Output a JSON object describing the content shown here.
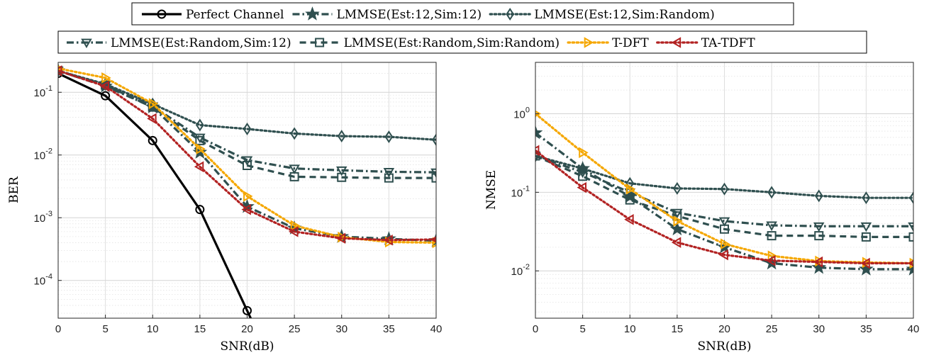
{
  "legend": {
    "series_names": [
      "Perfect Channel",
      "LMMSE(Est:12,Sim:12)",
      "LMMSE(Est:12,Sim:Random)",
      "LMMSE(Est:Random,Sim:12)",
      "LMMSE(Est:Random,Sim:Random)",
      "T-DFT",
      "TA-TDFT"
    ]
  },
  "styles": {
    "Perfect Channel": {
      "color": "#000000",
      "dash": "solid",
      "marker": "circle"
    },
    "LMMSE(Est:12,Sim:12)": {
      "color": "#2f4f4f",
      "dash": "dashdot",
      "marker": "star"
    },
    "LMMSE(Est:12,Sim:Random)": {
      "color": "#2f4f4f",
      "dash": "dotted",
      "marker": "diamond"
    },
    "LMMSE(Est:Random,Sim:12)": {
      "color": "#2f4f4f",
      "dash": "dashdot",
      "marker": "triangle-down"
    },
    "LMMSE(Est:Random,Sim:Random)": {
      "color": "#2f4f4f",
      "dash": "dashed",
      "marker": "square"
    },
    "T-DFT": {
      "color": "#f5a700",
      "dash": "dotted",
      "marker": "triangle-right"
    },
    "TA-TDFT": {
      "color": "#b22222",
      "dash": "dotted",
      "marker": "triangle-left"
    }
  },
  "chart_data": [
    {
      "type": "line",
      "title": "",
      "xlabel": "SNR(dB)",
      "ylabel": "BER",
      "yscale": "log",
      "xlim": [
        0,
        40
      ],
      "ylim": [
        2.5e-05,
        0.3
      ],
      "x_ticks": [
        "0",
        "5",
        "10",
        "15",
        "20",
        "25",
        "30",
        "35",
        "40"
      ],
      "y_ticks": [
        {
          "value": 0.1,
          "base": "10",
          "exp": "-1"
        },
        {
          "value": 0.01,
          "base": "10",
          "exp": "-2"
        },
        {
          "value": 0.001,
          "base": "10",
          "exp": "-3"
        },
        {
          "value": 0.0001,
          "base": "10",
          "exp": "-4"
        }
      ],
      "grid": true,
      "x": [
        0,
        5,
        10,
        15,
        20,
        25,
        30,
        35,
        40
      ],
      "series": [
        {
          "name": "Perfect Channel",
          "values": [
            0.2,
            0.088,
            0.017,
            0.00135,
            3.3e-05,
            null,
            null,
            null,
            null
          ]
        },
        {
          "name": "LMMSE(Est:12,Sim:12)",
          "values": [
            0.22,
            0.125,
            0.058,
            0.011,
            0.0015,
            0.00068,
            0.0005,
            0.00046,
            0.00043
          ]
        },
        {
          "name": "LMMSE(Est:12,Sim:Random)",
          "values": [
            0.22,
            0.135,
            0.065,
            0.03,
            0.026,
            0.022,
            0.02,
            0.0195,
            0.0175
          ]
        },
        {
          "name": "LMMSE(Est:Random,Sim:12)",
          "values": [
            0.22,
            0.13,
            0.06,
            0.019,
            0.0083,
            0.0061,
            0.0057,
            0.0054,
            0.0053
          ]
        },
        {
          "name": "LMMSE(Est:Random,Sim:Random)",
          "values": [
            0.22,
            0.13,
            0.058,
            0.017,
            0.0068,
            0.0045,
            0.0044,
            0.0043,
            0.0043
          ]
        },
        {
          "name": "T-DFT",
          "values": [
            0.24,
            0.17,
            0.066,
            0.0125,
            0.0022,
            0.00075,
            0.00049,
            0.00041,
            0.0004
          ]
        },
        {
          "name": "TA-TDFT",
          "values": [
            0.22,
            0.125,
            0.038,
            0.0065,
            0.00135,
            0.0006,
            0.00047,
            0.00044,
            0.00045
          ]
        }
      ]
    },
    {
      "type": "line",
      "title": "",
      "xlabel": "SNR(dB)",
      "ylabel": "NMSE",
      "yscale": "log",
      "xlim": [
        0,
        40
      ],
      "ylim": [
        0.0025,
        4.5
      ],
      "x_ticks": [
        "0",
        "5",
        "10",
        "15",
        "20",
        "25",
        "30",
        "35",
        "40"
      ],
      "y_ticks": [
        {
          "value": 1,
          "base": "10",
          "exp": "0"
        },
        {
          "value": 0.1,
          "base": "10",
          "exp": "-1"
        },
        {
          "value": 0.01,
          "base": "10",
          "exp": "-2"
        }
      ],
      "grid": true,
      "x": [
        0,
        5,
        10,
        15,
        20,
        25,
        30,
        35,
        40
      ],
      "series": [
        {
          "name": "LMMSE(Est:12,Sim:12)",
          "values": [
            0.57,
            0.2,
            0.088,
            0.034,
            0.02,
            0.0125,
            0.011,
            0.0105,
            0.0105
          ]
        },
        {
          "name": "LMMSE(Est:12,Sim:Random)",
          "values": [
            0.29,
            0.2,
            0.13,
            0.112,
            0.11,
            0.1,
            0.09,
            0.085,
            0.085
          ]
        },
        {
          "name": "LMMSE(Est:Random,Sim:12)",
          "values": [
            0.29,
            0.18,
            0.1,
            0.055,
            0.043,
            0.038,
            0.037,
            0.037,
            0.037
          ]
        },
        {
          "name": "LMMSE(Est:Random,Sim:Random)",
          "values": [
            0.29,
            0.16,
            0.08,
            0.05,
            0.034,
            0.028,
            0.028,
            0.027,
            0.027
          ]
        },
        {
          "name": "T-DFT",
          "values": [
            1.0,
            0.32,
            0.11,
            0.043,
            0.022,
            0.0155,
            0.0133,
            0.0128,
            0.0125
          ]
        },
        {
          "name": "TA-TDFT",
          "values": [
            0.34,
            0.115,
            0.045,
            0.023,
            0.016,
            0.0135,
            0.013,
            0.0125,
            0.0125
          ]
        }
      ]
    }
  ]
}
